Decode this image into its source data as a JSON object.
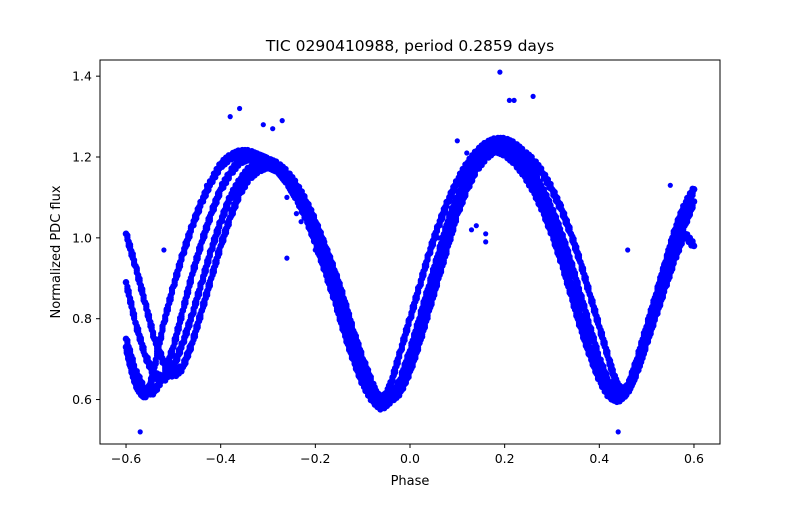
{
  "chart_data": {
    "type": "scatter",
    "title": "TIC 0290410988, period 0.2859 days",
    "xlabel": "Phase",
    "ylabel": "Normalized PDC flux",
    "xlim": [
      -0.655,
      0.655
    ],
    "ylim": [
      0.49,
      1.44
    ],
    "xticks": [
      -0.6,
      -0.4,
      -0.2,
      0.0,
      0.2,
      0.4,
      0.6
    ],
    "xtick_labels": [
      "−0.6",
      "−0.4",
      "−0.2",
      "0.0",
      "0.2",
      "0.4",
      "0.6"
    ],
    "yticks": [
      0.6,
      0.8,
      1.0,
      1.2,
      1.4
    ],
    "ytick_labels": [
      "0.6",
      "0.8",
      "1.0",
      "1.2",
      "1.4"
    ],
    "grid": false,
    "legend": "none",
    "marker_color": "#0000ff",
    "series": [
      {
        "x": [
          -0.6,
          -0.59,
          -0.58,
          -0.57,
          -0.56,
          -0.55,
          -0.54,
          -0.52,
          -0.5,
          -0.48,
          -0.46,
          -0.44,
          -0.42,
          -0.4,
          -0.38,
          -0.36,
          -0.34,
          -0.32,
          -0.3,
          -0.28,
          -0.26,
          -0.24,
          -0.22,
          -0.2,
          -0.18,
          -0.16,
          -0.14,
          -0.12,
          -0.1,
          -0.08,
          -0.07,
          -0.06,
          -0.05,
          -0.04,
          -0.02,
          0.0,
          0.02,
          0.04,
          0.06,
          0.08,
          0.1,
          0.12,
          0.14,
          0.16,
          0.18,
          0.2,
          0.22,
          0.24,
          0.26,
          0.28,
          0.3,
          0.32,
          0.34,
          0.36,
          0.38,
          0.4,
          0.42,
          0.43,
          0.44,
          0.45,
          0.46,
          0.48,
          0.5,
          0.52,
          0.54,
          0.56,
          0.58,
          0.6
        ],
        "y": [
          0.73,
          0.68,
          0.64,
          0.62,
          0.61,
          0.63,
          0.68,
          0.79,
          0.88,
          0.96,
          1.03,
          1.09,
          1.14,
          1.18,
          1.2,
          1.21,
          1.21,
          1.2,
          1.19,
          1.18,
          1.16,
          1.13,
          1.09,
          1.04,
          0.98,
          0.92,
          0.85,
          0.77,
          0.7,
          0.64,
          0.61,
          0.6,
          0.61,
          0.64,
          0.72,
          0.8,
          0.88,
          0.96,
          1.03,
          1.09,
          1.14,
          1.18,
          1.21,
          1.23,
          1.24,
          1.24,
          1.23,
          1.21,
          1.19,
          1.16,
          1.12,
          1.07,
          1.01,
          0.94,
          0.86,
          0.78,
          0.7,
          0.66,
          0.63,
          0.62,
          0.63,
          0.68,
          0.76,
          0.85,
          0.94,
          1.02,
          1.08,
          1.12
        ]
      },
      {
        "x": [
          -0.6,
          -0.58,
          -0.56,
          -0.54,
          -0.52,
          -0.5,
          -0.48,
          -0.46,
          -0.44,
          -0.42,
          -0.4,
          -0.38,
          -0.36,
          -0.34,
          -0.32,
          -0.3,
          -0.28,
          -0.26,
          -0.24,
          -0.22,
          -0.2,
          -0.18,
          -0.16,
          -0.14,
          -0.12,
          -0.1,
          -0.08,
          -0.06,
          -0.04,
          -0.02,
          0.0,
          0.02,
          0.04,
          0.06,
          0.08,
          0.1,
          0.12,
          0.14,
          0.16,
          0.18,
          0.2,
          0.22,
          0.24,
          0.26,
          0.28,
          0.3,
          0.32,
          0.34,
          0.36,
          0.38,
          0.4,
          0.42,
          0.44,
          0.46,
          0.48,
          0.5,
          0.52,
          0.54,
          0.56,
          0.58,
          0.6
        ],
        "y": [
          1.01,
          0.93,
          0.84,
          0.75,
          0.69,
          0.66,
          0.68,
          0.74,
          0.82,
          0.9,
          0.98,
          1.05,
          1.11,
          1.15,
          1.17,
          1.18,
          1.17,
          1.15,
          1.12,
          1.08,
          1.03,
          0.97,
          0.9,
          0.82,
          0.74,
          0.67,
          0.62,
          0.6,
          0.6,
          0.62,
          0.67,
          0.74,
          0.82,
          0.9,
          0.98,
          1.06,
          1.12,
          1.17,
          1.2,
          1.22,
          1.22,
          1.21,
          1.19,
          1.16,
          1.12,
          1.07,
          1.01,
          0.94,
          0.86,
          0.78,
          0.7,
          0.64,
          0.61,
          0.62,
          0.67,
          0.74,
          0.82,
          0.9,
          0.97,
          1.03,
          1.09
        ]
      },
      {
        "x": [
          -0.6,
          -0.58,
          -0.56,
          -0.54,
          -0.52,
          -0.5,
          -0.48,
          -0.46,
          -0.44,
          -0.42,
          -0.4,
          -0.38,
          -0.36,
          -0.34,
          -0.32,
          -0.3,
          -0.28,
          -0.26,
          -0.24,
          -0.22,
          -0.2,
          -0.18,
          -0.16,
          -0.14,
          -0.12,
          -0.1,
          -0.08,
          -0.06,
          -0.04,
          -0.02,
          0.0,
          0.02,
          0.04,
          0.06,
          0.08,
          0.1,
          0.12,
          0.14,
          0.16,
          0.18,
          0.2,
          0.22,
          0.24,
          0.26,
          0.28,
          0.3,
          0.32,
          0.34,
          0.36,
          0.38,
          0.4,
          0.42,
          0.44,
          0.46,
          0.48,
          0.5,
          0.52,
          0.54,
          0.56,
          0.58,
          0.6
        ],
        "y": [
          0.89,
          0.79,
          0.71,
          0.66,
          0.65,
          0.68,
          0.74,
          0.81,
          0.89,
          0.97,
          1.04,
          1.1,
          1.14,
          1.17,
          1.18,
          1.18,
          1.17,
          1.14,
          1.1,
          1.06,
          1.0,
          0.94,
          0.87,
          0.79,
          0.72,
          0.66,
          0.61,
          0.59,
          0.6,
          0.64,
          0.7,
          0.78,
          0.86,
          0.94,
          1.02,
          1.09,
          1.14,
          1.18,
          1.21,
          1.22,
          1.22,
          1.2,
          1.17,
          1.13,
          1.09,
          1.03,
          0.97,
          0.89,
          0.81,
          0.73,
          0.67,
          0.62,
          0.6,
          0.62,
          0.67,
          0.74,
          0.81,
          0.88,
          0.95,
          1.01,
          0.98
        ]
      },
      {
        "x": [
          -0.6,
          -0.58,
          -0.56,
          -0.54,
          -0.52,
          -0.5,
          -0.48,
          -0.46,
          -0.44,
          -0.42,
          -0.4,
          -0.38,
          -0.36,
          -0.34,
          -0.32,
          -0.3,
          -0.28,
          -0.26,
          -0.24,
          -0.22,
          -0.2,
          -0.18,
          -0.16,
          -0.14,
          -0.12,
          -0.1,
          -0.08,
          -0.06,
          -0.04,
          -0.02,
          0.0,
          0.02,
          0.04,
          0.06,
          0.08,
          0.1,
          0.12,
          0.14,
          0.16,
          0.18,
          0.2,
          0.22,
          0.24,
          0.26,
          0.28,
          0.3,
          0.32,
          0.34,
          0.36,
          0.38,
          0.4,
          0.42,
          0.44,
          0.46,
          0.48,
          0.5,
          0.52,
          0.54,
          0.56,
          0.58,
          0.6
        ],
        "y": [
          0.75,
          0.67,
          0.62,
          0.62,
          0.66,
          0.73,
          0.82,
          0.91,
          0.99,
          1.06,
          1.12,
          1.16,
          1.19,
          1.2,
          1.2,
          1.19,
          1.17,
          1.14,
          1.1,
          1.05,
          0.99,
          0.92,
          0.85,
          0.77,
          0.7,
          0.64,
          0.6,
          0.58,
          0.6,
          0.65,
          0.72,
          0.8,
          0.88,
          0.96,
          1.04,
          1.1,
          1.15,
          1.19,
          1.21,
          1.22,
          1.21,
          1.19,
          1.16,
          1.12,
          1.07,
          1.01,
          0.94,
          0.86,
          0.78,
          0.71,
          0.65,
          0.61,
          0.6,
          0.63,
          0.7,
          0.78,
          0.86,
          0.94,
          1.01,
          1.07,
          1.12
        ]
      }
    ],
    "outliers": [
      {
        "x": 0.19,
        "y": 1.41
      },
      {
        "x": 0.26,
        "y": 1.35
      },
      {
        "x": 0.21,
        "y": 1.34
      },
      {
        "x": 0.22,
        "y": 1.34
      },
      {
        "x": 0.1,
        "y": 1.24
      },
      {
        "x": 0.12,
        "y": 1.21
      },
      {
        "x": 0.27,
        "y": 1.18
      },
      {
        "x": 0.3,
        "y": 1.12
      },
      {
        "x": 0.32,
        "y": 1.08
      },
      {
        "x": -0.38,
        "y": 1.3
      },
      {
        "x": -0.36,
        "y": 1.32
      },
      {
        "x": -0.31,
        "y": 1.28
      },
      {
        "x": -0.29,
        "y": 1.27
      },
      {
        "x": -0.27,
        "y": 1.29
      },
      {
        "x": -0.43,
        "y": 1.13
      },
      {
        "x": -0.26,
        "y": 1.1
      },
      {
        "x": -0.24,
        "y": 1.06
      },
      {
        "x": -0.23,
        "y": 1.04
      },
      {
        "x": -0.19,
        "y": 1.0
      },
      {
        "x": -0.18,
        "y": 0.99
      },
      {
        "x": -0.2,
        "y": 0.97
      },
      {
        "x": -0.26,
        "y": 0.95
      },
      {
        "x": 0.06,
        "y": 1.0
      },
      {
        "x": 0.09,
        "y": 1.01
      },
      {
        "x": 0.13,
        "y": 1.02
      },
      {
        "x": 0.14,
        "y": 1.03
      },
      {
        "x": 0.16,
        "y": 0.99
      },
      {
        "x": 0.16,
        "y": 1.01
      },
      {
        "x": 0.37,
        "y": 0.81
      },
      {
        "x": -0.52,
        "y": 0.97
      },
      {
        "x": 0.46,
        "y": 0.97
      },
      {
        "x": 0.55,
        "y": 1.13
      },
      {
        "x": -0.57,
        "y": 0.52
      },
      {
        "x": 0.44,
        "y": 0.52
      },
      {
        "x": -0.1,
        "y": 0.7
      }
    ]
  }
}
